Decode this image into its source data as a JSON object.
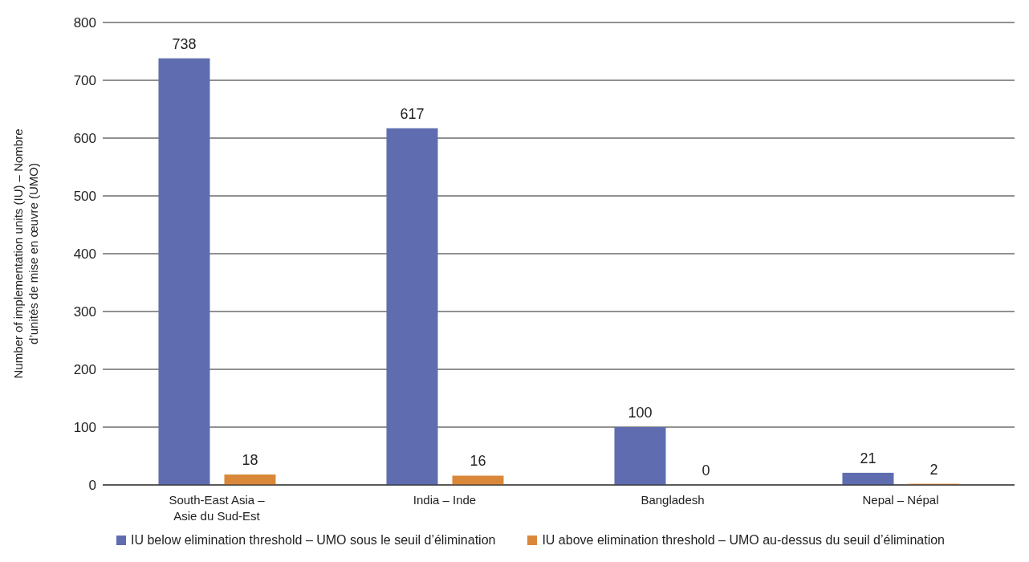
{
  "chart_data": {
    "type": "bar",
    "ylabel": "Number of implementation units (IU) – Nombre d’unités de mise en œuvre (UMO)",
    "categories": [
      "South-East Asia – Asie du Sud-Est",
      "India – Inde",
      "Bangladesh",
      "Nepal – Népal"
    ],
    "series": [
      {
        "name": "IU below elimination threshold – UMO sous le seuil d’élimination",
        "color": "#5f6db0",
        "values": [
          738,
          617,
          100,
          21
        ],
        "value_labels": [
          "738",
          "617",
          "100",
          "21"
        ]
      },
      {
        "name": "IU above elimination threshold – UMO au-dessus du seuil d’élimination",
        "color": "#d9883a",
        "values": [
          18,
          16,
          0,
          2
        ],
        "value_labels": [
          "18",
          "16",
          null,
          "2"
        ]
      }
    ],
    "annotations": [
      {
        "text": "0",
        "x": "Bangladesh",
        "y": 0
      }
    ],
    "ylim": [
      0,
      800
    ],
    "yticks": [
      0,
      100,
      200,
      300,
      400,
      500,
      600,
      700,
      800
    ],
    "grid": "y",
    "legend": "bottom"
  }
}
